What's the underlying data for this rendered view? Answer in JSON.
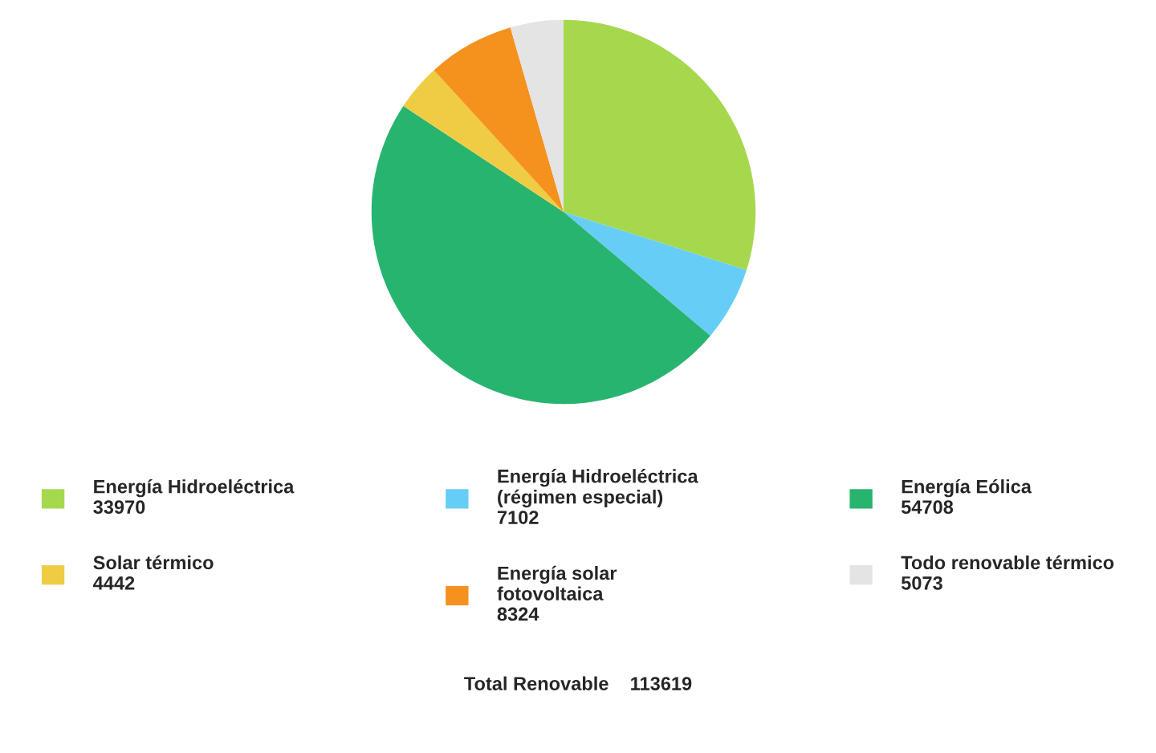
{
  "chart_data": {
    "type": "pie",
    "categories": [
      "Energía Hidroeléctrica",
      "Energía Hidroeléctrica (régimen especial)",
      "Energía Eólica",
      "Solar térmico",
      "Energía solar fotovoltaica",
      "Todo renovable térmico"
    ],
    "values": [
      33970,
      7102,
      54708,
      4442,
      8324,
      5073
    ],
    "colors": [
      "#a6d84e",
      "#66cdf6",
      "#27b46e",
      "#f0cb44",
      "#f5921e",
      "#e4e4e4"
    ],
    "data_labels": true,
    "legend": "bottom",
    "annotations": [
      "Total Renovable    113619"
    ]
  }
}
